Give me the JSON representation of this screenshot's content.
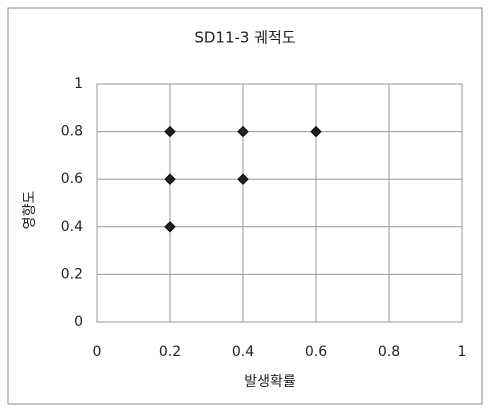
{
  "chart_data": {
    "type": "scatter",
    "title": "SD11-3 궤적도",
    "x_label": "발생확률",
    "y_label": "영향도",
    "series": [
      {
        "color": "#222222",
        "x": [
          0.2,
          0.4,
          0.6,
          0.2,
          0.4,
          0.2
        ],
        "values": [
          0.8,
          0.8,
          0.8,
          0.6,
          0.6,
          0.4
        ]
      }
    ],
    "xlim": [
      0,
      1
    ],
    "xticks": [
      0,
      0.2,
      0.4,
      0.6,
      0.8,
      1
    ],
    "ylim": [
      0,
      1
    ],
    "yticks": [
      0,
      0.2,
      0.4,
      0.6,
      0.8,
      1
    ],
    "grid": true
  }
}
